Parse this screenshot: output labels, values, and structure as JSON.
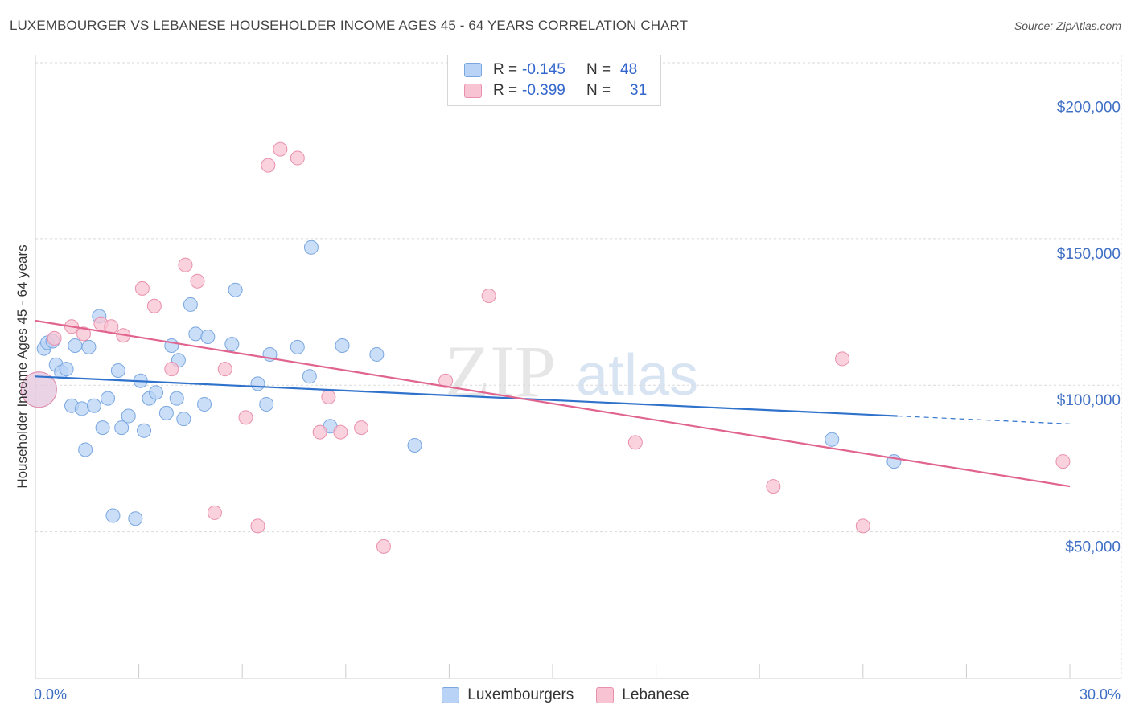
{
  "title": "LUXEMBOURGER VS LEBANESE HOUSEHOLDER INCOME AGES 45 - 64 YEARS CORRELATION CHART",
  "source": "Source: ZipAtlas.com",
  "watermark": {
    "zip": "ZIP",
    "atlas": "atlas"
  },
  "legend": {
    "r_label": "R =",
    "n_label": "N =",
    "series": [
      {
        "name": "Luxembourgers",
        "r": "-0.145",
        "n": "48"
      },
      {
        "name": "Lebanese",
        "r": "-0.399",
        "n": "31"
      }
    ]
  },
  "colors": {
    "lux_fill": "#b8d3f5",
    "lux_stroke": "#7aa7e0",
    "lux_line": "#2f72cc",
    "leb_fill": "#f8c3d3",
    "leb_stroke": "#e990ad",
    "leb_line": "#e0648f",
    "axis_text": "#3f6fc4",
    "grid": "#d9d9d9"
  },
  "chart_data": {
    "type": "scatter",
    "title": "LUXEMBOURGER VS LEBANESE HOUSEHOLDER INCOME AGES 45 - 64 YEARS CORRELATION CHART",
    "xlabel": "",
    "ylabel": "Householder Income Ages 45 - 64 years",
    "xlim": [
      0,
      30
    ],
    "ylim": [
      0,
      210000
    ],
    "x_tick_labels": [
      {
        "value": 0,
        "label": "0.0%"
      },
      {
        "value": 30,
        "label": "30.0%"
      }
    ],
    "y_ticks": [
      {
        "value": 50000,
        "label": "$50,000"
      },
      {
        "value": 100000,
        "label": "$100,000"
      },
      {
        "value": 150000,
        "label": "$150,000"
      },
      {
        "value": 200000,
        "label": "$200,000"
      }
    ],
    "grid": true,
    "legend_position": "top-center",
    "series": [
      {
        "name": "Luxembourgers",
        "points": [
          {
            "x": 0.1,
            "y": 98500,
            "big": true
          },
          {
            "x": 0.25,
            "y": 112500
          },
          {
            "x": 0.35,
            "y": 114500
          },
          {
            "x": 0.5,
            "y": 115000
          },
          {
            "x": 0.6,
            "y": 107000
          },
          {
            "x": 0.75,
            "y": 104500
          },
          {
            "x": 0.9,
            "y": 105500
          },
          {
            "x": 1.05,
            "y": 93000
          },
          {
            "x": 1.15,
            "y": 113500
          },
          {
            "x": 1.35,
            "y": 92000
          },
          {
            "x": 1.45,
            "y": 78000
          },
          {
            "x": 1.55,
            "y": 113000
          },
          {
            "x": 1.7,
            "y": 93000
          },
          {
            "x": 1.85,
            "y": 123500
          },
          {
            "x": 1.95,
            "y": 85500
          },
          {
            "x": 2.1,
            "y": 95500
          },
          {
            "x": 2.25,
            "y": 55500
          },
          {
            "x": 2.4,
            "y": 105000
          },
          {
            "x": 2.5,
            "y": 85500
          },
          {
            "x": 2.7,
            "y": 89500
          },
          {
            "x": 2.9,
            "y": 54500
          },
          {
            "x": 3.05,
            "y": 101500
          },
          {
            "x": 3.15,
            "y": 84500
          },
          {
            "x": 3.3,
            "y": 95500
          },
          {
            "x": 3.5,
            "y": 97500
          },
          {
            "x": 3.8,
            "y": 90500
          },
          {
            "x": 3.95,
            "y": 113500
          },
          {
            "x": 4.15,
            "y": 108500
          },
          {
            "x": 4.1,
            "y": 95500
          },
          {
            "x": 4.3,
            "y": 88500
          },
          {
            "x": 4.5,
            "y": 127500
          },
          {
            "x": 4.65,
            "y": 117500
          },
          {
            "x": 4.9,
            "y": 93500
          },
          {
            "x": 5.0,
            "y": 116500
          },
          {
            "x": 5.7,
            "y": 114000
          },
          {
            "x": 5.8,
            "y": 132500
          },
          {
            "x": 6.45,
            "y": 100500
          },
          {
            "x": 6.7,
            "y": 93500
          },
          {
            "x": 6.8,
            "y": 110500
          },
          {
            "x": 7.6,
            "y": 113000
          },
          {
            "x": 7.95,
            "y": 103000
          },
          {
            "x": 8.0,
            "y": 147000
          },
          {
            "x": 8.55,
            "y": 86000
          },
          {
            "x": 8.9,
            "y": 113500
          },
          {
            "x": 9.9,
            "y": 110500
          },
          {
            "x": 11.0,
            "y": 79500
          },
          {
            "x": 23.1,
            "y": 81500
          },
          {
            "x": 24.9,
            "y": 74000
          }
        ],
        "trend": {
          "x0": 0,
          "y0": 103000,
          "x1": 25.0,
          "y1": 89500,
          "dash_to_x": 30,
          "dash_to_y": 86800
        }
      },
      {
        "name": "Lebanese",
        "points": [
          {
            "x": 0.1,
            "y": 98500,
            "big": true
          },
          {
            "x": 0.55,
            "y": 116000
          },
          {
            "x": 1.05,
            "y": 120000
          },
          {
            "x": 1.4,
            "y": 117500
          },
          {
            "x": 1.9,
            "y": 121000
          },
          {
            "x": 2.2,
            "y": 120000
          },
          {
            "x": 2.55,
            "y": 117000
          },
          {
            "x": 3.1,
            "y": 133000
          },
          {
            "x": 3.45,
            "y": 127000
          },
          {
            "x": 3.95,
            "y": 105500
          },
          {
            "x": 4.35,
            "y": 141000
          },
          {
            "x": 4.7,
            "y": 135500
          },
          {
            "x": 5.2,
            "y": 56500
          },
          {
            "x": 5.5,
            "y": 105500
          },
          {
            "x": 6.1,
            "y": 89000
          },
          {
            "x": 6.45,
            "y": 52000
          },
          {
            "x": 6.75,
            "y": 175000
          },
          {
            "x": 7.1,
            "y": 180500
          },
          {
            "x": 7.6,
            "y": 177500
          },
          {
            "x": 8.25,
            "y": 84000
          },
          {
            "x": 8.5,
            "y": 96000
          },
          {
            "x": 8.85,
            "y": 84000
          },
          {
            "x": 9.45,
            "y": 85500
          },
          {
            "x": 10.1,
            "y": 45000
          },
          {
            "x": 11.9,
            "y": 101500
          },
          {
            "x": 13.15,
            "y": 130500
          },
          {
            "x": 17.4,
            "y": 80500
          },
          {
            "x": 21.4,
            "y": 65500
          },
          {
            "x": 23.4,
            "y": 109000
          },
          {
            "x": 24.0,
            "y": 52000
          },
          {
            "x": 29.8,
            "y": 74000
          }
        ],
        "trend": {
          "x0": 0,
          "y0": 122000,
          "x1": 30,
          "y1": 65500
        }
      }
    ]
  }
}
